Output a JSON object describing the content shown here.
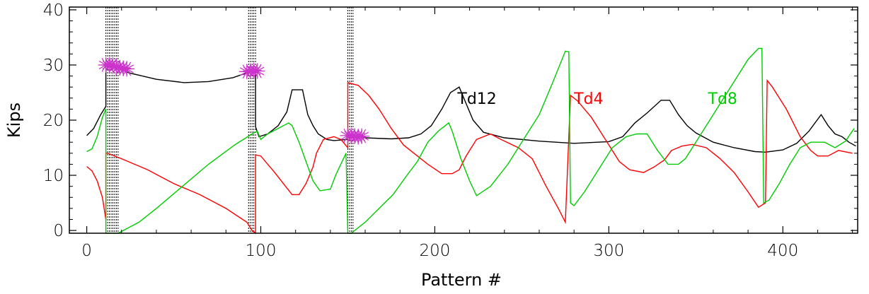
{
  "chart_data": {
    "type": "line",
    "title": "",
    "xlabel": "Pattern #",
    "ylabel": "Kips",
    "xlim": [
      -10,
      443
    ],
    "ylim": [
      -0.5,
      40.5
    ],
    "xticks": [
      0,
      100,
      200,
      300,
      400
    ],
    "yticks": [
      0,
      10,
      20,
      30,
      40
    ],
    "grid": false,
    "series": [
      {
        "name": "Td12",
        "color": "#000000",
        "label_at": [
          213,
          24
        ],
        "points": [
          [
            0,
            17.2
          ],
          [
            4,
            18.5
          ],
          [
            8,
            21
          ],
          [
            10,
            22
          ],
          [
            11,
            22.5
          ],
          [
            11,
            30
          ],
          [
            14,
            30
          ],
          [
            18,
            29.5
          ],
          [
            24,
            28.6
          ],
          [
            40,
            27.4
          ],
          [
            56,
            26.8
          ],
          [
            70,
            27.0
          ],
          [
            84,
            27.7
          ],
          [
            94,
            28.8
          ],
          [
            97,
            28.8
          ],
          [
            97,
            18.8
          ],
          [
            99,
            17.0
          ],
          [
            104,
            17.5
          ],
          [
            110,
            19
          ],
          [
            115,
            21.5
          ],
          [
            118,
            25.5
          ],
          [
            124,
            25.5
          ],
          [
            127,
            21
          ],
          [
            130,
            19
          ],
          [
            133,
            17.5
          ],
          [
            138,
            16.5
          ],
          [
            142,
            16.3
          ],
          [
            150,
            16.5
          ],
          [
            150,
            16.9
          ],
          [
            160,
            16.8
          ],
          [
            175,
            16.6
          ],
          [
            185,
            16.8
          ],
          [
            192,
            17.5
          ],
          [
            198,
            19
          ],
          [
            204,
            22
          ],
          [
            209,
            25
          ],
          [
            214,
            26
          ],
          [
            218,
            23
          ],
          [
            222,
            20
          ],
          [
            228,
            17.8
          ],
          [
            240,
            16.8
          ],
          [
            260,
            16.2
          ],
          [
            280,
            15.8
          ],
          [
            300,
            16.1
          ],
          [
            308,
            17
          ],
          [
            315,
            19.5
          ],
          [
            322,
            21.3
          ],
          [
            330,
            23.6
          ],
          [
            335,
            23.6
          ],
          [
            340,
            21
          ],
          [
            345,
            19
          ],
          [
            350,
            17.7
          ],
          [
            360,
            16
          ],
          [
            372,
            15
          ],
          [
            384,
            14.3
          ],
          [
            390,
            14.2
          ],
          [
            400,
            14.6
          ],
          [
            408,
            15.8
          ],
          [
            415,
            18
          ],
          [
            422,
            21
          ],
          [
            426,
            19
          ],
          [
            430,
            17.5
          ],
          [
            434,
            17
          ],
          [
            438,
            16
          ],
          [
            442,
            15.3
          ]
        ]
      },
      {
        "name": "Td4",
        "color": "#ff0000",
        "label_at": [
          280,
          24
        ],
        "points": [
          [
            0,
            11.6
          ],
          [
            3,
            10.8
          ],
          [
            6,
            9
          ],
          [
            9,
            6
          ],
          [
            11,
            2
          ],
          [
            11,
            14
          ],
          [
            12,
            14
          ],
          [
            20,
            13
          ],
          [
            35,
            11
          ],
          [
            50,
            8.5
          ],
          [
            65,
            6.5
          ],
          [
            80,
            4
          ],
          [
            92,
            1.5
          ],
          [
            95,
            0
          ],
          [
            97,
            -0.5
          ],
          [
            97,
            13.7
          ],
          [
            100,
            13.5
          ],
          [
            104,
            12
          ],
          [
            108,
            10.5
          ],
          [
            113,
            8.5
          ],
          [
            118,
            6.5
          ],
          [
            122,
            6.5
          ],
          [
            126,
            8.5
          ],
          [
            130,
            11.5
          ],
          [
            132,
            14
          ],
          [
            136,
            16.5
          ],
          [
            142,
            17
          ],
          [
            146,
            16.5
          ],
          [
            150,
            15
          ],
          [
            150,
            26.8
          ],
          [
            156,
            26.3
          ],
          [
            162,
            24.5
          ],
          [
            168,
            22
          ],
          [
            175,
            18.5
          ],
          [
            182,
            15.5
          ],
          [
            188,
            14
          ],
          [
            196,
            12
          ],
          [
            204,
            10.3
          ],
          [
            210,
            10.3
          ],
          [
            214,
            11
          ],
          [
            218,
            13.5
          ],
          [
            224,
            16.5
          ],
          [
            232,
            17.5
          ],
          [
            238,
            16.5
          ],
          [
            248,
            15
          ],
          [
            256,
            13
          ],
          [
            264,
            8
          ],
          [
            271,
            4
          ],
          [
            275,
            1.5
          ],
          [
            278,
            24.5
          ],
          [
            282,
            23.5
          ],
          [
            290,
            20.5
          ],
          [
            298,
            16.5
          ],
          [
            306,
            12.5
          ],
          [
            312,
            11
          ],
          [
            320,
            10.5
          ],
          [
            326,
            11.5
          ],
          [
            332,
            12.8
          ],
          [
            336,
            14.5
          ],
          [
            342,
            15.3
          ],
          [
            348,
            15.6
          ],
          [
            356,
            15
          ],
          [
            364,
            13
          ],
          [
            372,
            10.5
          ],
          [
            380,
            7
          ],
          [
            386,
            4.2
          ],
          [
            390,
            5
          ],
          [
            391,
            27.2
          ],
          [
            394,
            26
          ],
          [
            402,
            22
          ],
          [
            410,
            17
          ],
          [
            416,
            14.5
          ],
          [
            420,
            13.5
          ],
          [
            426,
            13.5
          ],
          [
            432,
            14.5
          ],
          [
            440,
            14
          ]
        ]
      },
      {
        "name": "Td8",
        "color": "#00cc00",
        "label_at": [
          357,
          24
        ],
        "points": [
          [
            0,
            14.3
          ],
          [
            3,
            14.8
          ],
          [
            6,
            17
          ],
          [
            9,
            20.5
          ],
          [
            11,
            22
          ],
          [
            11,
            -0.5
          ],
          [
            18,
            -0.5
          ],
          [
            24,
            0.5
          ],
          [
            30,
            1.5
          ],
          [
            40,
            4
          ],
          [
            55,
            8
          ],
          [
            70,
            12
          ],
          [
            85,
            15.5
          ],
          [
            95,
            17.5
          ],
          [
            98,
            18
          ],
          [
            100,
            16.5
          ],
          [
            104,
            17.5
          ],
          [
            110,
            18.5
          ],
          [
            116,
            19.5
          ],
          [
            118,
            19
          ],
          [
            122,
            16
          ],
          [
            126,
            12.5
          ],
          [
            130,
            9
          ],
          [
            134,
            7.2
          ],
          [
            140,
            7.5
          ],
          [
            143,
            10
          ],
          [
            146,
            12
          ],
          [
            149,
            14
          ],
          [
            150,
            -0.5
          ],
          [
            152,
            -0.5
          ],
          [
            160,
            1.5
          ],
          [
            168,
            4
          ],
          [
            176,
            6.5
          ],
          [
            184,
            10
          ],
          [
            190,
            12.5
          ],
          [
            196,
            16
          ],
          [
            202,
            18
          ],
          [
            208,
            19.5
          ],
          [
            210,
            18
          ],
          [
            215,
            13
          ],
          [
            220,
            9
          ],
          [
            224,
            6.3
          ],
          [
            232,
            8
          ],
          [
            242,
            12
          ],
          [
            252,
            17
          ],
          [
            260,
            21
          ],
          [
            268,
            27
          ],
          [
            275,
            32.5
          ],
          [
            277,
            32.4
          ],
          [
            278,
            5
          ],
          [
            280,
            4.5
          ],
          [
            286,
            7
          ],
          [
            294,
            11
          ],
          [
            302,
            15
          ],
          [
            310,
            17
          ],
          [
            316,
            17.5
          ],
          [
            322,
            17.5
          ],
          [
            328,
            14.5
          ],
          [
            334,
            12
          ],
          [
            340,
            12
          ],
          [
            344,
            13
          ],
          [
            350,
            16
          ],
          [
            358,
            20
          ],
          [
            366,
            24
          ],
          [
            374,
            28
          ],
          [
            380,
            31
          ],
          [
            386,
            33
          ],
          [
            388,
            33
          ],
          [
            389,
            5
          ],
          [
            392,
            5.5
          ],
          [
            398,
            8.5
          ],
          [
            404,
            12
          ],
          [
            410,
            15
          ],
          [
            416,
            16
          ],
          [
            424,
            16
          ],
          [
            430,
            15
          ],
          [
            436,
            16.2
          ],
          [
            441,
            18.5
          ]
        ]
      }
    ],
    "vertical_markers": [
      {
        "from": 11,
        "to": 18,
        "step": 1
      },
      {
        "from": 93,
        "to": 97,
        "step": 1
      },
      {
        "from": 150,
        "to": 153,
        "step": 1
      }
    ],
    "star_markers": {
      "color": "#cc33cc",
      "points": [
        [
          11,
          30
        ],
        [
          13,
          30
        ],
        [
          15,
          30
        ],
        [
          17,
          29.6
        ],
        [
          19,
          29.5
        ],
        [
          21,
          29.4
        ],
        [
          23,
          29.3
        ],
        [
          92,
          28.8
        ],
        [
          94,
          28.9
        ],
        [
          96,
          29.0
        ],
        [
          98,
          28.9
        ],
        [
          150,
          17.2
        ],
        [
          152,
          17.2
        ],
        [
          154,
          17.1
        ],
        [
          156,
          17.0
        ],
        [
          158,
          17.1
        ]
      ]
    }
  }
}
